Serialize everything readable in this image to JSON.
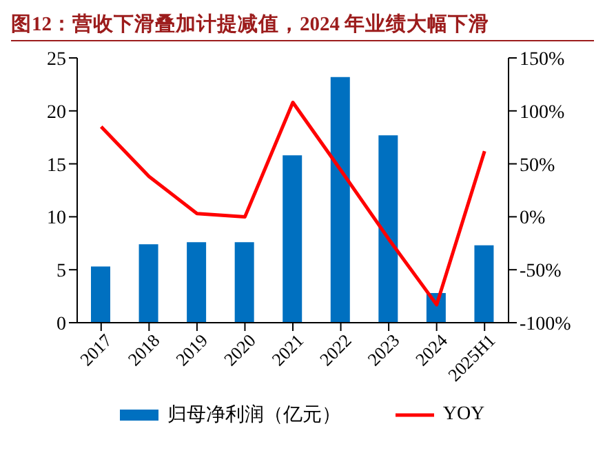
{
  "chart_data": {
    "type": "bar",
    "title": "图12：营收下滑叠加计提减值，2024 年业绩大幅下滑",
    "categories": [
      "2017",
      "2018",
      "2019",
      "2020",
      "2021",
      "2022",
      "2023",
      "2024",
      "2025H1"
    ],
    "series": [
      {
        "name": "归母净利润（亿元）",
        "color": "#0070c0",
        "values": [
          5.3,
          7.4,
          7.6,
          7.6,
          15.8,
          23.2,
          17.7,
          2.8,
          7.3
        ]
      },
      {
        "name": "YOY",
        "type": "line",
        "axis": "y2",
        "color": "#ff0000",
        "values": [
          85,
          38,
          3,
          0,
          108,
          44,
          -21,
          -83,
          62
        ]
      }
    ],
    "ylim": [
      0,
      25
    ],
    "yticks": [
      0,
      5,
      10,
      15,
      20,
      25
    ],
    "y2lim": [
      -100,
      150
    ],
    "y2ticks": [
      {
        "value": -100,
        "label": "-100%"
      },
      {
        "value": -50,
        "label": "-50%"
      },
      {
        "value": 0,
        "label": "0%"
      },
      {
        "value": 50,
        "label": "50%"
      },
      {
        "value": 100,
        "label": "100%"
      },
      {
        "value": 150,
        "label": "150%"
      }
    ],
    "grid": false,
    "legend": "bottom",
    "marker": "none"
  }
}
